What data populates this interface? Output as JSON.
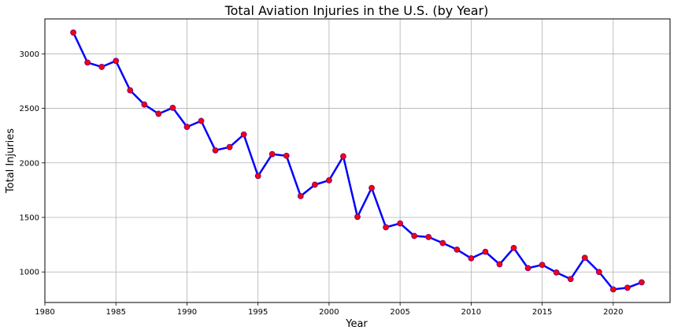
{
  "chart_data": {
    "type": "line",
    "title": "Total Aviation Injuries in the U.S. (by Year)",
    "xlabel": "Year",
    "ylabel": "Total Injuries",
    "xlim": [
      1980,
      2024
    ],
    "ylim": [
      720,
      3320
    ],
    "xticks": [
      1980,
      1985,
      1990,
      1995,
      2000,
      2005,
      2010,
      2015,
      2020
    ],
    "yticks": [
      1000,
      1500,
      2000,
      2500,
      3000
    ],
    "grid": true,
    "line_color": "#0000ff",
    "marker_face_color": "#ff0000",
    "marker_edge_color": "#800080",
    "series": [
      {
        "x": [
          1982,
          1983,
          1984,
          1985,
          1986,
          1987,
          1988,
          1989,
          1990,
          1991,
          1992,
          1993,
          1994,
          1995,
          1996,
          1997,
          1998,
          1999,
          2000,
          2001,
          2002,
          2003,
          2004,
          2005,
          2006,
          2007,
          2008,
          2009,
          2010,
          2011,
          2012,
          2013,
          2014,
          2015,
          2016,
          2017,
          2018,
          2019,
          2020,
          2021,
          2022
        ],
        "values": [
          3195,
          2920,
          2880,
          2935,
          2665,
          2535,
          2450,
          2505,
          2330,
          2385,
          2115,
          2145,
          2260,
          1880,
          2080,
          2065,
          1695,
          1800,
          1840,
          2060,
          1505,
          1770,
          1410,
          1445,
          1330,
          1320,
          1265,
          1205,
          1125,
          1185,
          1070,
          1220,
          1035,
          1065,
          995,
          935,
          1130,
          1000,
          840,
          855,
          905
        ]
      }
    ]
  }
}
